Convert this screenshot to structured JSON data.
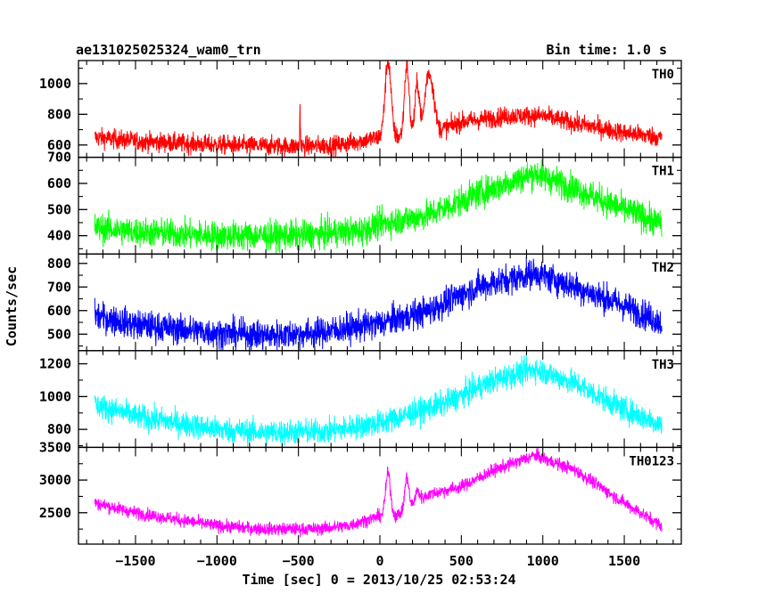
{
  "header": {
    "title": "ae131025025324_wam0_trn",
    "bin_time": "Bin time: 1.0 s"
  },
  "chart_data": {
    "type": "line",
    "title": "ae131025025324_wam0_trn",
    "subtitle": "Bin time: 1.0 s",
    "xlabel": "Time [sec] 0 = 2013/10/25 02:53:24",
    "ylabel": "Counts/sec",
    "xlim": [
      -1850,
      1850
    ],
    "x_ticks": [
      -1500,
      -1000,
      -500,
      0,
      500,
      1000,
      1500
    ],
    "x_tick_labels": [
      "−1500",
      "−1000",
      "−500",
      "0",
      "500",
      "1000",
      "1500"
    ],
    "data_x_range": [
      -1750,
      1730
    ],
    "grid": false,
    "panels": [
      {
        "name": "TH0",
        "color": "#ff0000",
        "ylim": [
          520,
          1150
        ],
        "y_ticks": [
          600,
          800,
          1000
        ],
        "y_tick_labels": [
          "600",
          "800",
          "1000"
        ],
        "noise": 45,
        "trend": [
          [
            -1750,
            650
          ],
          [
            -1500,
            625
          ],
          [
            -1000,
            600
          ],
          [
            -500,
            590
          ],
          [
            -250,
            600
          ],
          [
            -50,
            640
          ],
          [
            0,
            650
          ],
          [
            100,
            650
          ],
          [
            350,
            690
          ],
          [
            500,
            750
          ],
          [
            800,
            790
          ],
          [
            1000,
            790
          ],
          [
            1200,
            740
          ],
          [
            1500,
            680
          ],
          [
            1730,
            650
          ]
        ],
        "events": [
          {
            "x": 50,
            "peak": 1150,
            "width": 18
          },
          {
            "x": 165,
            "peak": 1120,
            "width": 14
          },
          {
            "x": 230,
            "peak": 1000,
            "width": 14
          },
          {
            "x": 290,
            "peak": 960,
            "width": 18
          },
          {
            "x": 320,
            "peak": 930,
            "width": 20
          },
          {
            "x": -490,
            "peak": 840,
            "width": 2
          }
        ]
      },
      {
        "name": "TH1",
        "color": "#00ff00",
        "ylim": [
          330,
          700
        ],
        "y_ticks": [
          400,
          500,
          600,
          700
        ],
        "y_tick_labels": [
          "400",
          "500",
          "600",
          "700"
        ],
        "noise": 40,
        "trend": [
          [
            -1750,
            430
          ],
          [
            -1500,
            415
          ],
          [
            -1000,
            400
          ],
          [
            -500,
            400
          ],
          [
            -100,
            420
          ],
          [
            0,
            445
          ],
          [
            300,
            480
          ],
          [
            600,
            560
          ],
          [
            950,
            640
          ],
          [
            1200,
            580
          ],
          [
            1500,
            500
          ],
          [
            1730,
            445
          ]
        ],
        "events": []
      },
      {
        "name": "TH2",
        "color": "#0000ff",
        "ylim": [
          430,
          840
        ],
        "y_ticks": [
          500,
          600,
          700,
          800
        ],
        "y_tick_labels": [
          "500",
          "600",
          "700",
          "800"
        ],
        "noise": 45,
        "trend": [
          [
            -1750,
            580
          ],
          [
            -1500,
            540
          ],
          [
            -1000,
            505
          ],
          [
            -700,
            495
          ],
          [
            -400,
            505
          ],
          [
            0,
            545
          ],
          [
            300,
            600
          ],
          [
            600,
            700
          ],
          [
            950,
            760
          ],
          [
            1200,
            700
          ],
          [
            1500,
            620
          ],
          [
            1730,
            550
          ]
        ],
        "events": []
      },
      {
        "name": "TH3",
        "color": "#00ffff",
        "ylim": [
          690,
          1280
        ],
        "y_ticks": [
          800,
          1000,
          1200
        ],
        "y_tick_labels": [
          "800",
          "1000",
          "1200"
        ],
        "noise": 55,
        "trend": [
          [
            -1750,
            950
          ],
          [
            -1500,
            880
          ],
          [
            -1000,
            800
          ],
          [
            -700,
            780
          ],
          [
            -300,
            790
          ],
          [
            0,
            840
          ],
          [
            400,
            960
          ],
          [
            700,
            1100
          ],
          [
            950,
            1170
          ],
          [
            1200,
            1080
          ],
          [
            1500,
            920
          ],
          [
            1730,
            830
          ]
        ],
        "events": []
      },
      {
        "name": "TH0123",
        "color": "#ff00ff",
        "ylim": [
          2020,
          3500
        ],
        "y_ticks": [
          2500,
          3000,
          3500
        ],
        "y_tick_labels": [
          "2500",
          "3000",
          "3500"
        ],
        "noise": 70,
        "trend": [
          [
            -1750,
            2650
          ],
          [
            -1500,
            2500
          ],
          [
            -1000,
            2300
          ],
          [
            -700,
            2250
          ],
          [
            -400,
            2250
          ],
          [
            -200,
            2300
          ],
          [
            0,
            2450
          ],
          [
            100,
            2450
          ],
          [
            300,
            2780
          ],
          [
            500,
            2900
          ],
          [
            700,
            3150
          ],
          [
            950,
            3380
          ],
          [
            1200,
            3150
          ],
          [
            1500,
            2650
          ],
          [
            1730,
            2300
          ]
        ],
        "events": [
          {
            "x": 50,
            "peak": 3100,
            "width": 15
          },
          {
            "x": 165,
            "peak": 3050,
            "width": 12
          },
          {
            "x": 230,
            "peak": 2830,
            "width": 14
          }
        ]
      }
    ]
  }
}
